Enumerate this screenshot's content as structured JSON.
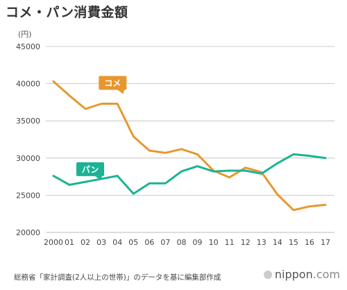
{
  "chart_data": {
    "type": "line",
    "title": "コメ・パン消費金額",
    "unit_label": "(円)",
    "categories": [
      "2000",
      "01",
      "02",
      "03",
      "04",
      "05",
      "06",
      "07",
      "08",
      "09",
      "10",
      "11",
      "12",
      "13",
      "14",
      "15",
      "16",
      "17"
    ],
    "ylim": [
      20000,
      45000
    ],
    "yticks": [
      20000,
      25000,
      30000,
      35000,
      40000,
      45000
    ],
    "grid": "horizontal",
    "series": [
      {
        "name": "コメ",
        "color": "#e8972f",
        "values": [
          40300,
          38400,
          36600,
          37300,
          37300,
          32900,
          31000,
          30700,
          31200,
          30500,
          28300,
          27400,
          28700,
          28100,
          25100,
          23000,
          23500,
          23700
        ]
      },
      {
        "name": "パン",
        "color": "#1ab394",
        "values": [
          27600,
          26400,
          26800,
          27200,
          27600,
          25200,
          26600,
          26600,
          28200,
          28900,
          28200,
          28300,
          28300,
          27900,
          29300,
          30500,
          30300,
          30000
        ]
      }
    ]
  },
  "source_note": "総務省「家計調査(2人以上の世帯)」のデータを基に編集部作成",
  "brand": {
    "name": "nippon",
    "suffix": ".com",
    "icon": "nippon-logo-icon"
  }
}
